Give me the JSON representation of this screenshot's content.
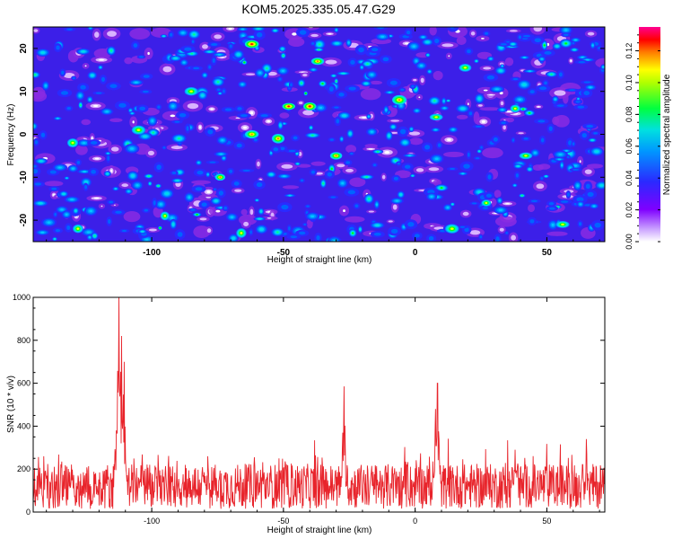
{
  "title": "KOM5.2025.335.05.47.G29",
  "colors": {
    "line": "#e8242b",
    "background": "#ffffff",
    "axis": "#000000"
  },
  "chart_data": [
    {
      "type": "heatmap",
      "xlabel": "Height of straight line (km)",
      "ylabel": "Frequency (Hz)",
      "xlim": [
        -145,
        72
      ],
      "ylim": [
        -25,
        25
      ],
      "xticks": [
        -100,
        -50,
        0,
        50
      ],
      "xtick_labels": [
        "-100",
        "-50",
        "0",
        "50"
      ],
      "yticks": [
        -20,
        -10,
        0,
        10,
        20
      ],
      "ytick_labels": [
        "-20",
        "-10",
        "0",
        "10",
        "20"
      ],
      "colorbar": {
        "label": "Normalized spectral amplitude",
        "range": [
          0,
          0.135
        ],
        "ticks": [
          0.0,
          0.02,
          0.04,
          0.06,
          0.08,
          0.1,
          0.12
        ],
        "tick_labels": [
          "0.00",
          "0.02",
          "0.04",
          "0.06",
          "0.08",
          "0.10",
          "0.12"
        ],
        "colormap": "rainbow (white-purple-blue-cyan-green-yellow-red-magenta)"
      },
      "note": "random speckle noise field, values mostly 0.01-0.05 with scattered peaks up to ~0.12"
    },
    {
      "type": "line",
      "xlabel": "Height of straight line (km)",
      "ylabel": "SNR (10 * v/v)",
      "xlim": [
        -145,
        72
      ],
      "ylim": [
        0,
        1000
      ],
      "xticks": [
        -100,
        -50,
        0,
        50
      ],
      "xtick_labels": [
        "-100",
        "-50",
        "0",
        "50"
      ],
      "yticks": [
        0,
        200,
        400,
        600,
        800,
        1000
      ],
      "ytick_labels": [
        "0",
        "200",
        "400",
        "600",
        "800",
        "1000"
      ],
      "baseline": {
        "mean": 120,
        "spread": 150,
        "max_noise": 260
      },
      "peaks": [
        {
          "x": -113.5,
          "value": 380
        },
        {
          "x": -112.5,
          "value": 1000
        },
        {
          "x": -111.5,
          "value": 820
        },
        {
          "x": -110.5,
          "value": 700
        },
        {
          "x": -27,
          "value": 585
        },
        {
          "x": 8.5,
          "value": 600
        },
        {
          "x": 7.8,
          "value": 480
        },
        {
          "x": 38,
          "value": 290
        },
        {
          "x": 65,
          "value": 340
        }
      ]
    }
  ]
}
